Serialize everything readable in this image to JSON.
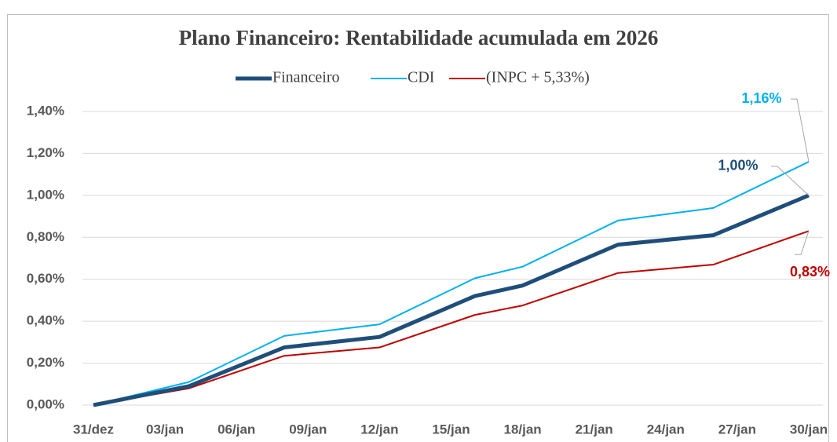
{
  "chart_data": {
    "type": "line",
    "title": "Plano Financeiro: Rentabilidade acumulada em 2026",
    "x": [
      0,
      2,
      4,
      8,
      12,
      16,
      18,
      22,
      26,
      30
    ],
    "xlim": [
      0,
      30
    ],
    "xticks": [
      {
        "value": 0,
        "label": "31/dez"
      },
      {
        "value": 3,
        "label": "03/jan"
      },
      {
        "value": 6,
        "label": "06/jan"
      },
      {
        "value": 9,
        "label": "09/jan"
      },
      {
        "value": 12,
        "label": "12/jan"
      },
      {
        "value": 15,
        "label": "15/jan"
      },
      {
        "value": 18,
        "label": "18/jan"
      },
      {
        "value": 21,
        "label": "21/jan"
      },
      {
        "value": 24,
        "label": "24/jan"
      },
      {
        "value": 27,
        "label": "27/jan"
      },
      {
        "value": 30,
        "label": "30/jan"
      }
    ],
    "ylim": [
      0,
      1.4
    ],
    "yticks": [
      {
        "value": 0,
        "label": "0,00%"
      },
      {
        "value": 0.2,
        "label": "0,20%"
      },
      {
        "value": 0.4,
        "label": "0,40%"
      },
      {
        "value": 0.6,
        "label": "0,60%"
      },
      {
        "value": 0.8,
        "label": "0,80%"
      },
      {
        "value": 1.0,
        "label": "1,00%"
      },
      {
        "value": 1.2,
        "label": "1,20%"
      },
      {
        "value": 1.4,
        "label": "1,40%"
      }
    ],
    "grid": true,
    "legend": "top",
    "series": [
      {
        "name": "Financeiro",
        "color": "#1f4e79",
        "values": [
          0,
          0.045,
          0.09,
          0.275,
          0.325,
          0.52,
          0.57,
          0.765,
          0.81,
          1.0
        ],
        "value_labels": [
          null,
          null,
          null,
          null,
          null,
          null,
          null,
          null,
          null,
          "1,00%"
        ]
      },
      {
        "name": "CDI",
        "color": "#00b0f0",
        "values": [
          0,
          0.055,
          0.11,
          0.33,
          0.385,
          0.605,
          0.66,
          0.88,
          0.94,
          1.16
        ],
        "value_labels": [
          null,
          null,
          null,
          null,
          null,
          null,
          null,
          null,
          null,
          "1,16%"
        ]
      },
      {
        "name": "(INPC + 5,33%)",
        "color": "#c00000",
        "values": [
          0,
          0.04,
          0.08,
          0.235,
          0.275,
          0.43,
          0.475,
          0.63,
          0.67,
          0.83
        ],
        "value_labels": [
          null,
          null,
          null,
          null,
          null,
          null,
          null,
          null,
          null,
          "0,83%"
        ]
      }
    ]
  }
}
